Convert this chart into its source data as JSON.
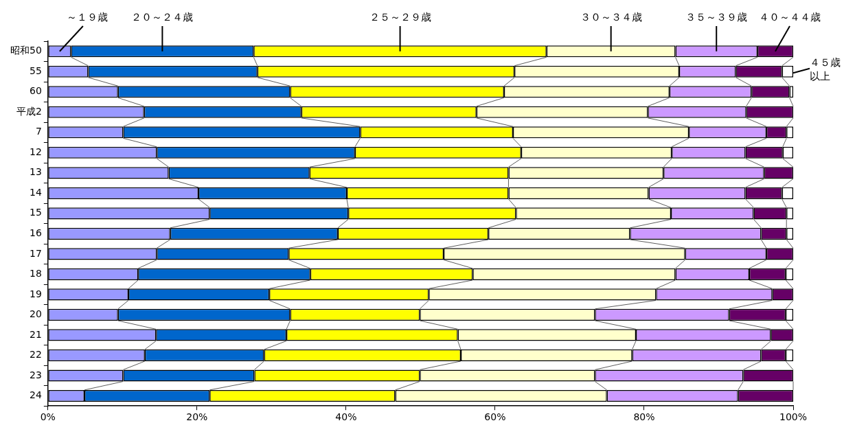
{
  "chart_data": {
    "type": "bar",
    "orientation": "horizontal",
    "stacked": true,
    "categories": [
      "昭和50",
      "55",
      "60",
      "平成2",
      "7",
      "12",
      "13",
      "14",
      "15",
      "16",
      "17",
      "18",
      "19",
      "20",
      "21",
      "22",
      "23",
      "24"
    ],
    "series": [
      {
        "name": "～１９歳",
        "color": "#9999ff",
        "values": [
          3.1,
          5.4,
          9.4,
          12.9,
          10.1,
          14.6,
          16.2,
          20.2,
          21.7,
          16.4,
          14.6,
          12.1,
          10.8,
          9.4,
          14.5,
          13.0,
          10.1,
          4.9
        ]
      },
      {
        "name": "２０～２４歳",
        "color": "#0066cc",
        "values": [
          24.5,
          22.7,
          23.1,
          21.1,
          31.8,
          26.6,
          18.9,
          19.9,
          18.6,
          22.5,
          17.7,
          23.1,
          18.9,
          23.1,
          17.5,
          16.0,
          17.6,
          16.8
        ]
      },
      {
        "name": "２５～２９歳",
        "color": "#ffff00",
        "values": [
          39.3,
          34.5,
          28.7,
          23.5,
          20.5,
          22.3,
          26.7,
          21.7,
          22.5,
          20.2,
          20.8,
          21.8,
          21.4,
          17.4,
          23.0,
          26.4,
          22.2,
          24.9
        ]
      },
      {
        "name": "３０～３４歳",
        "color": "#ffffcc",
        "values": [
          17.3,
          22.1,
          22.2,
          23.0,
          23.6,
          20.2,
          20.8,
          18.8,
          20.8,
          19.0,
          32.4,
          27.2,
          30.5,
          23.5,
          23.9,
          23.0,
          23.5,
          28.4
        ]
      },
      {
        "name": "３５～３９歳",
        "color": "#cc99ff",
        "values": [
          11.0,
          7.6,
          11.0,
          13.2,
          10.4,
          9.9,
          13.5,
          13.0,
          11.1,
          17.6,
          10.9,
          9.9,
          15.6,
          18.0,
          18.1,
          17.3,
          19.9,
          17.6
        ]
      },
      {
        "name": "４０～４４歳",
        "color": "#660066",
        "values": [
          4.8,
          6.2,
          5.1,
          6.3,
          2.7,
          5.0,
          3.9,
          4.9,
          4.4,
          3.4,
          3.6,
          4.9,
          2.8,
          7.6,
          3.0,
          3.3,
          6.7,
          7.4
        ]
      },
      {
        "name": "４５歳以上",
        "color": "#ffffff",
        "values": [
          null,
          1.5,
          0.5,
          null,
          0.9,
          1.4,
          null,
          1.5,
          0.9,
          0.9,
          null,
          1.0,
          null,
          1.0,
          null,
          1.0,
          null,
          null
        ]
      }
    ],
    "xlim": [
      0,
      100
    ],
    "xticks": [
      {
        "value": 0,
        "label": "0%"
      },
      {
        "value": 20,
        "label": "20%"
      },
      {
        "value": 40,
        "label": "40%"
      },
      {
        "value": 60,
        "label": "60%"
      },
      {
        "value": 80,
        "label": "80%"
      },
      {
        "value": 100,
        "label": "100%"
      }
    ],
    "grid": false,
    "legend": false
  }
}
